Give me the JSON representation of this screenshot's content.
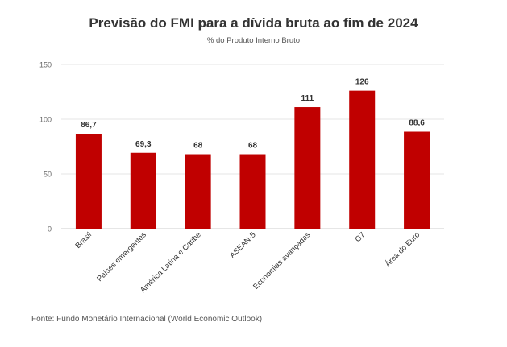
{
  "chart_data": {
    "type": "bar",
    "title": "Previsão do FMI para a dívida bruta ao fim de 2024",
    "subtitle": "% do Produto Interno Bruto",
    "categories": [
      "Brasil",
      "Países emergentes",
      "América Latina e Caribe",
      "ASEAN-5",
      "Economias avançadas",
      "G7",
      "Área do Euro"
    ],
    "values": [
      86.7,
      69.3,
      68,
      68,
      111,
      126,
      88.6
    ],
    "data_labels": [
      "86,7",
      "69,3",
      "68",
      "68",
      "111",
      "126",
      "88,6"
    ],
    "yticks": [
      0,
      50,
      100,
      150
    ],
    "ytick_labels": [
      "0",
      "50",
      "100",
      "150"
    ],
    "ylim": [
      0,
      150
    ],
    "xlabel": "",
    "ylabel": "",
    "grid": true,
    "bar_color": "#c00000",
    "grid_color": "#e6e6e6"
  },
  "source": "Fonte: Fundo Monetário Internacional (World Economic Outlook)"
}
